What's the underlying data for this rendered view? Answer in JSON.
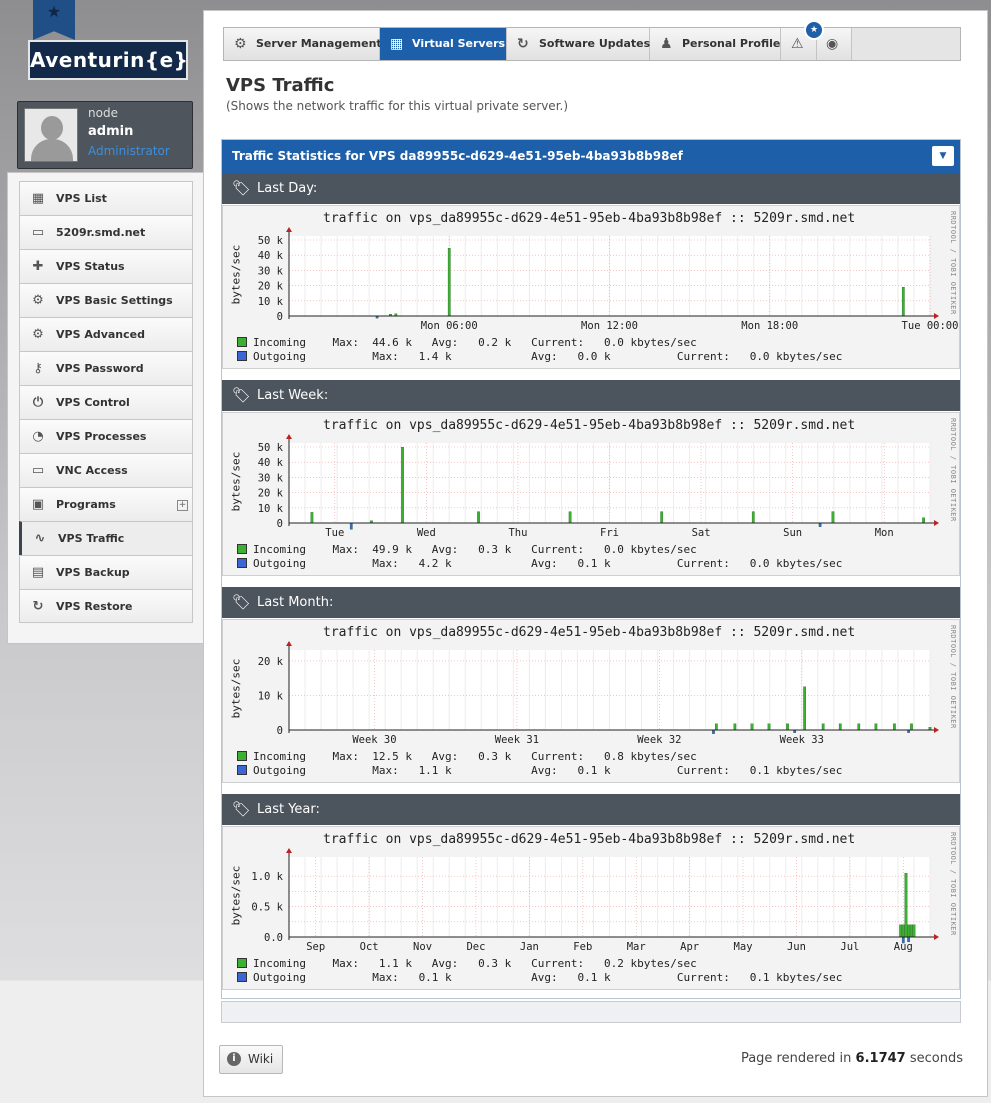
{
  "brand": {
    "name": "Aventurin{e}"
  },
  "user": {
    "line1": "node",
    "name": "admin",
    "role": "Administrator"
  },
  "sidebar": {
    "items": [
      {
        "label": "VPS List",
        "icon": "list-icon",
        "glyph": "▦"
      },
      {
        "label": "5209r.smd.net",
        "icon": "laptop-icon",
        "glyph": "▭"
      },
      {
        "label": "VPS Status",
        "icon": "medkit-icon",
        "glyph": "✚"
      },
      {
        "label": "VPS Basic Settings",
        "icon": "gear-icon",
        "glyph": "⚙"
      },
      {
        "label": "VPS Advanced Settings",
        "icon": "gears-icon",
        "glyph": "⚙"
      },
      {
        "label": "VPS Password",
        "icon": "key-icon",
        "glyph": "⚷"
      },
      {
        "label": "VPS Control",
        "icon": "plug-icon",
        "glyph": "⏻"
      },
      {
        "label": "VPS Processes",
        "icon": "gauge-icon",
        "glyph": "◔"
      },
      {
        "label": "VNC Access",
        "icon": "monitor-icon",
        "glyph": "▭"
      },
      {
        "label": "Programs",
        "icon": "robot-icon",
        "glyph": "▣"
      },
      {
        "label": "VPS Traffic",
        "icon": "line-chart-icon",
        "glyph": "∿"
      },
      {
        "label": "VPS Backup",
        "icon": "backup-icon",
        "glyph": "▤"
      },
      {
        "label": "VPS Restore",
        "icon": "refresh-icon",
        "glyph": "↻"
      }
    ],
    "programs_expand": "+"
  },
  "topnav": {
    "tabs": [
      {
        "label": "Server Management",
        "icon": "gear-icon",
        "glyph": "⚙"
      },
      {
        "label": "Virtual Servers",
        "icon": "grid-icon",
        "glyph": "▦"
      },
      {
        "label": "Software Updates",
        "icon": "refresh-icon",
        "glyph": "↻"
      },
      {
        "label": "Personal Profile",
        "icon": "user-icon",
        "glyph": "♟"
      }
    ],
    "warning_glyph": "⚠",
    "power_glyph": "◉",
    "badge": "★"
  },
  "page": {
    "title": "VPS Traffic",
    "subtitle": "(Shows the network traffic for this virtual private server.)"
  },
  "panel": {
    "title": "Traffic Statistics for VPS da89955c-d629-4e51-95eb-4ba93b8b98ef",
    "collapse_glyph": "▼"
  },
  "graph_title": "traffic on vps_da89955c-d629-4e51-95eb-4ba93b8b98ef :: 5209r.smd.net",
  "ylabel": "bytes/sec",
  "vertical_credit": "RRDTOOL / TOBI OETIKER",
  "colors": {
    "incoming": "#3cb033",
    "outgoing": "#3a66d6"
  },
  "sections": [
    {
      "label": "Last Day:",
      "incoming": "Incoming    Max:  44.6 k   Avg:   0.2 k   Current:   0.0 kbytes/sec",
      "outgoing": "Outgoing          Max:   1.4 k            Avg:   0.0 k          Current:   0.0 kbytes/sec"
    },
    {
      "label": "Last Week:",
      "incoming": "Incoming    Max:  49.9 k   Avg:   0.3 k   Current:   0.0 kbytes/sec",
      "outgoing": "Outgoing          Max:   4.2 k            Avg:   0.1 k          Current:   0.0 kbytes/sec"
    },
    {
      "label": "Last Month:",
      "incoming": "Incoming    Max:  12.5 k   Avg:   0.3 k   Current:   0.8 kbytes/sec",
      "outgoing": "Outgoing          Max:   1.1 k            Avg:   0.1 k          Current:   0.1 kbytes/sec"
    },
    {
      "label": "Last Year:",
      "incoming": "Incoming    Max:   1.1 k   Avg:   0.3 k   Current:   0.2 kbytes/sec",
      "outgoing": "Outgoing          Max:   0.1 k            Avg:   0.1 k          Current:   0.1 kbytes/sec"
    }
  ],
  "chart_data": [
    {
      "type": "bar",
      "ylim": [
        0,
        50000
      ],
      "yticks": [
        0,
        10000,
        20000,
        30000,
        40000,
        50000
      ],
      "yticklabels": [
        "0",
        "10 k",
        "20 k",
        "30 k",
        "40 k",
        "50 k"
      ],
      "xlim": [
        0,
        24
      ],
      "xticks": [
        6,
        12,
        18,
        24
      ],
      "xticklabels": [
        "Mon 06:00",
        "Mon 12:00",
        "Mon 18:00",
        "Tue 00:00"
      ],
      "series": [
        {
          "name": "Incoming",
          "x": [
            3.8,
            4.0,
            6.0,
            23.0
          ],
          "values": [
            1200,
            1500,
            44600,
            19000
          ]
        },
        {
          "name": "Outgoing",
          "x": [
            3.3
          ],
          "values": [
            -1400
          ]
        }
      ]
    },
    {
      "type": "bar",
      "ylim": [
        0,
        50000
      ],
      "yticks": [
        0,
        10000,
        20000,
        30000,
        40000,
        50000
      ],
      "yticklabels": [
        "0",
        "10 k",
        "20 k",
        "30 k",
        "40 k",
        "50 k"
      ],
      "xlim": [
        0,
        7
      ],
      "xticks": [
        0.5,
        1.5,
        2.5,
        3.5,
        4.5,
        5.5,
        6.5
      ],
      "xticklabels": [
        "Tue",
        "Wed",
        "Thu",
        "Fri",
        "Sat",
        "Sun",
        "Mon"
      ],
      "series": [
        {
          "name": "Incoming",
          "x": [
            0.25,
            0.9,
            1.24,
            2.07,
            3.07,
            4.07,
            5.07,
            5.94,
            6.93
          ],
          "values": [
            7000,
            1500,
            49900,
            7500,
            7500,
            7500,
            7500,
            7500,
            3500
          ]
        },
        {
          "name": "Outgoing",
          "x": [
            0.68,
            5.8
          ],
          "values": [
            -4200,
            -2500
          ]
        }
      ]
    },
    {
      "type": "bar",
      "ylim": [
        0,
        22000
      ],
      "yticks": [
        0,
        10000,
        20000
      ],
      "yticklabels": [
        "0",
        "10 k",
        "20 k"
      ],
      "xlim": [
        0,
        4.5
      ],
      "xticks": [
        0.6,
        1.6,
        2.6,
        3.6
      ],
      "xticklabels": [
        "Week 30",
        "Week 31",
        "Week 32",
        "Week 33"
      ],
      "series": [
        {
          "name": "Incoming",
          "x": [
            3.0,
            3.13,
            3.25,
            3.37,
            3.5,
            3.62,
            3.75,
            3.87,
            4.0,
            4.12,
            4.25,
            4.37,
            4.5
          ],
          "values": [
            1800,
            1800,
            1800,
            1800,
            1800,
            12500,
            1800,
            1800,
            1800,
            1800,
            1800,
            1800,
            800
          ]
        },
        {
          "name": "Outgoing",
          "x": [
            2.98,
            3.55,
            4.35
          ],
          "values": [
            -1100,
            -800,
            -800
          ]
        }
      ]
    },
    {
      "type": "bar",
      "ylim": [
        0,
        1250
      ],
      "yticks": [
        0,
        250,
        500,
        750,
        1000
      ],
      "yticklabels": [
        "0.0",
        "",
        "0.5 k",
        "",
        "1.0 k"
      ],
      "xlim": [
        0,
        12
      ],
      "xticks": [
        0.5,
        1.5,
        2.5,
        3.5,
        4.5,
        5.5,
        6.5,
        7.5,
        8.5,
        9.5,
        10.5,
        11.5
      ],
      "xticklabels": [
        "Sep",
        "Oct",
        "Nov",
        "Dec",
        "Jan",
        "Feb",
        "Mar",
        "Apr",
        "May",
        "Jun",
        "Jul",
        "Aug"
      ],
      "series": [
        {
          "name": "Incoming",
          "x": [
            11.45,
            11.5,
            11.55,
            11.6,
            11.65,
            11.7
          ],
          "values": [
            200,
            200,
            1050,
            200,
            200,
            200
          ]
        },
        {
          "name": "Outgoing",
          "x": [
            11.5,
            11.6
          ],
          "values": [
            -100,
            -80
          ]
        }
      ]
    }
  ],
  "footer": {
    "wiki": "Wiki",
    "rendered_prefix": "Page rendered in",
    "rendered_value": "6.1747",
    "rendered_suffix": "seconds"
  }
}
